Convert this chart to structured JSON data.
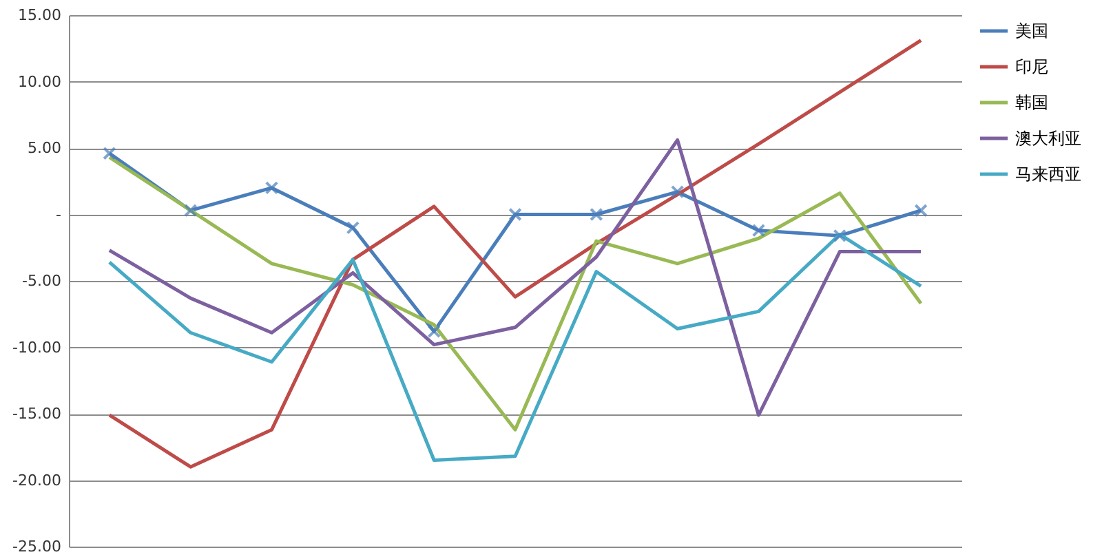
{
  "chart_data": {
    "type": "line",
    "categories": [
      null,
      null,
      null,
      null,
      null,
      null,
      null,
      null,
      null,
      null,
      null
    ],
    "series": [
      {
        "name": "美国",
        "color": "#4a7ebb",
        "marker": "cross",
        "values": [
          4.6,
          0.3,
          2.0,
          -1.0,
          -8.8,
          0.0,
          0.0,
          1.7,
          -1.2,
          -1.6,
          0.3
        ]
      },
      {
        "name": "印尼",
        "color": "#be4b48",
        "values": [
          -15.1,
          -19.0,
          -16.2,
          -3.4,
          0.6,
          -6.2,
          -2.2,
          1.5,
          5.3,
          9.2,
          13.1
        ]
      },
      {
        "name": "韩国",
        "color": "#98b954",
        "values": [
          4.3,
          0.3,
          -3.7,
          -5.3,
          -8.3,
          -16.2,
          -2.0,
          -3.7,
          -1.8,
          1.6,
          -6.7
        ]
      },
      {
        "name": "澳大利亚",
        "color": "#7d60a0",
        "values": [
          -2.7,
          -6.3,
          -8.9,
          -4.4,
          -9.8,
          -8.5,
          -3.2,
          5.6,
          -15.1,
          -2.8,
          -2.8
        ]
      },
      {
        "name": "马来西亚",
        "color": "#46aac5",
        "values": [
          -3.6,
          -8.9,
          -11.1,
          -3.4,
          -18.5,
          -18.2,
          -4.3,
          -8.6,
          -7.3,
          -1.5,
          -5.4
        ]
      }
    ],
    "ylim": [
      -25,
      15
    ],
    "yticks": [
      {
        "value": -25,
        "label": "-25.00"
      },
      {
        "value": -20,
        "label": "-20.00"
      },
      {
        "value": -15,
        "label": "-15.00"
      },
      {
        "value": -10,
        "label": "-10.00"
      },
      {
        "value": -5,
        "label": "-5.00"
      },
      {
        "value": 0,
        "label": "-"
      },
      {
        "value": 5,
        "label": "5.00"
      },
      {
        "value": 10,
        "label": "10.00"
      },
      {
        "value": 15,
        "label": "15.00"
      }
    ],
    "grid": "y",
    "legend": "right",
    "line_style": "solid"
  }
}
